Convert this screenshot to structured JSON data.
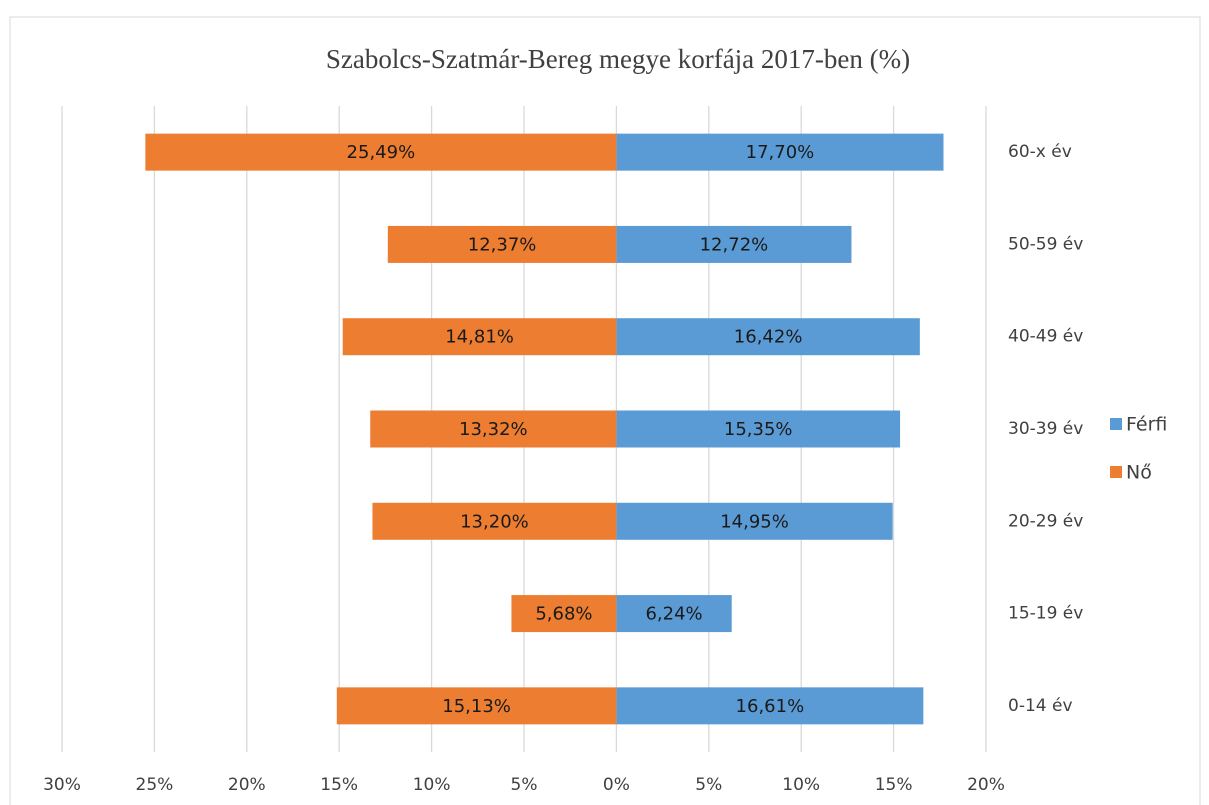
{
  "chart_data": {
    "type": "bar",
    "orientation": "horizontal",
    "title": "Szabolcs-Szatmár-Bereg megye korfája 2017-ben (%)",
    "categories": [
      "60-x év",
      "50-59 év",
      "40-49 év",
      "30-39 év",
      "20-29 év",
      "15-19 év",
      "0-14 év"
    ],
    "series": [
      {
        "name": "Férfi",
        "color": "#5b9bd5",
        "values": [
          17.7,
          12.72,
          16.42,
          15.35,
          14.95,
          6.24,
          16.61
        ],
        "value_labels": [
          "17,70%",
          "12,72%",
          "16,42%",
          "15,35%",
          "14,95%",
          "6,24%",
          "16,61%"
        ]
      },
      {
        "name": "Nő",
        "color": "#ed7d31",
        "values": [
          -25.49,
          -12.37,
          -14.81,
          -13.32,
          -13.2,
          -5.68,
          -15.13
        ],
        "value_labels": [
          "25,49%",
          "12,37%",
          "14,81%",
          "13,32%",
          "13,20%",
          "5,68%",
          "15,13%"
        ]
      }
    ],
    "xlim": [
      -30,
      20
    ],
    "xticks": [
      {
        "value": -30,
        "label": "30%"
      },
      {
        "value": -25,
        "label": "25%"
      },
      {
        "value": -20,
        "label": "20%"
      },
      {
        "value": -15,
        "label": "15%"
      },
      {
        "value": -10,
        "label": "10%"
      },
      {
        "value": -5,
        "label": "5%"
      },
      {
        "value": 0,
        "label": "0%"
      },
      {
        "value": 5,
        "label": "5%"
      },
      {
        "value": 10,
        "label": "10%"
      },
      {
        "value": 15,
        "label": "15%"
      },
      {
        "value": 20,
        "label": "20%"
      }
    ],
    "grid": true,
    "legend": "right"
  }
}
